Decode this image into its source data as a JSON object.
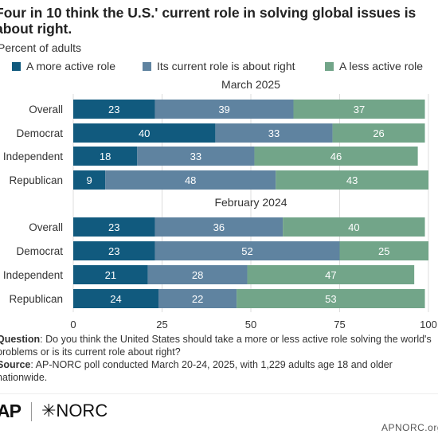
{
  "title": "Four in 10 think the U.S.' current role in solving global issues is about right.",
  "subtitle": "Percent of adults",
  "colors": {
    "more_active": "#115a7e",
    "about_right": "#5f83a0",
    "less_active": "#72a589",
    "axis_text": "#333333",
    "gridline": "#dddddd"
  },
  "chart_data": {
    "type": "bar",
    "orientation": "horizontal",
    "stacked": true,
    "xlim": [
      0,
      100
    ],
    "x_ticks": [
      0,
      25,
      50,
      75,
      100
    ],
    "legend_position": "top",
    "series": [
      {
        "name": "A more active role"
      },
      {
        "name": "Its current role is about right"
      },
      {
        "name": "A less active role"
      }
    ],
    "panels": [
      {
        "title": "March 2025",
        "categories": [
          "Overall",
          "Democrat",
          "Independent",
          "Republican"
        ],
        "values": [
          [
            23,
            39,
            37
          ],
          [
            40,
            33,
            26
          ],
          [
            18,
            33,
            46
          ],
          [
            9,
            48,
            43
          ]
        ]
      },
      {
        "title": "February 2024",
        "categories": [
          "Overall",
          "Democrat",
          "Independent",
          "Republican"
        ],
        "values": [
          [
            23,
            36,
            40
          ],
          [
            23,
            52,
            25
          ],
          [
            21,
            28,
            47
          ],
          [
            24,
            22,
            53
          ]
        ]
      }
    ]
  },
  "notes": {
    "question_label": "Question",
    "question_text": ": Do you think the United States should take a more or less active role solving the world's problems or is its current role about right?",
    "source_label": "Source",
    "source_text": ": AP-NORC poll conducted March 20-24, 2025, with 1,229 adults age 18 and older nationwide."
  },
  "footer": {
    "logo_ap": "AP",
    "logo_norc": "✳NORC",
    "site": "APNORC.org"
  }
}
